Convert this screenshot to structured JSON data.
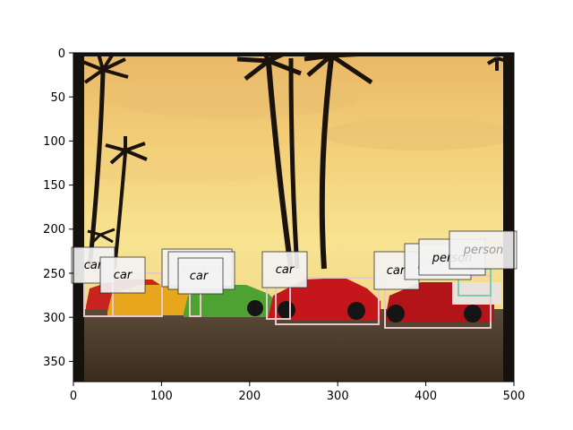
{
  "image": {
    "description_icon": "photo-icon",
    "x_ticks": [
      "0",
      "100",
      "200",
      "300",
      "400",
      "500"
    ],
    "y_ticks": [
      "0",
      "50",
      "100",
      "150",
      "200",
      "250",
      "300",
      "350"
    ],
    "colors": {
      "sky_top": "#f4d27a",
      "sky_horizon": "#f6e58c",
      "ground": "#4a3a2a",
      "palm": "#1a120c",
      "box_outline": "#e8c9c9",
      "label_bg": "#f2f2f2"
    }
  },
  "detections": [
    {
      "label": "car",
      "faded": false
    },
    {
      "label": "car",
      "faded": false
    },
    {
      "label": "person",
      "faded": true
    },
    {
      "label": "car",
      "faded": false
    },
    {
      "label": "car",
      "faded": false
    },
    {
      "label": "car",
      "faded": false
    },
    {
      "label": "person",
      "faded": true
    },
    {
      "label": "person",
      "faded": false
    },
    {
      "label": "person",
      "faded": true
    }
  ]
}
